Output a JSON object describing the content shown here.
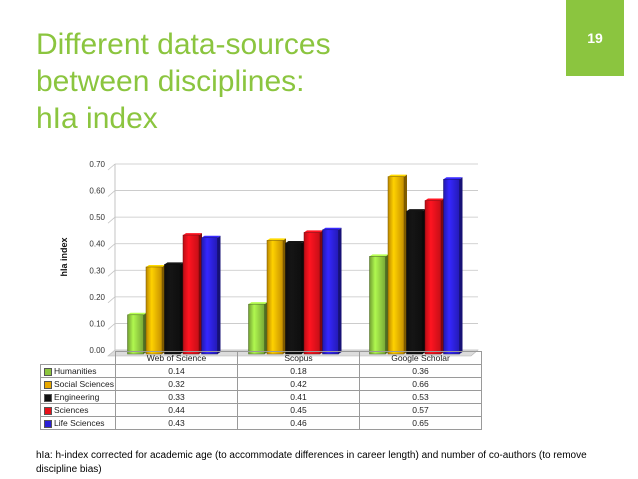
{
  "slide": {
    "title": "Different data-sources\nbetween disciplines:\nhIa index",
    "page_number": "19",
    "footnote": "hIa: h-index corrected for academic age (to accommodate differences in career length) and number of co-authors (to remove discipline bias)",
    "accent_color": "#8bc53f"
  },
  "chart_data": {
    "type": "bar",
    "ylabel": "hIa index",
    "xlabel": "",
    "ylim": [
      0,
      0.7
    ],
    "yticks": [
      "0.00",
      "0.10",
      "0.20",
      "0.30",
      "0.40",
      "0.50",
      "0.60",
      "0.70"
    ],
    "grid": true,
    "legend": "data-table-below",
    "categories": [
      "Web of Science",
      "Scopus",
      "Google Scholar"
    ],
    "series": [
      {
        "name": "Humanities",
        "values": [
          0.14,
          0.18,
          0.36
        ],
        "color": "#8dc63f"
      },
      {
        "name": "Social Sciences",
        "values": [
          0.32,
          0.42,
          0.66
        ],
        "color": "#e8a800"
      },
      {
        "name": "Engineering",
        "values": [
          0.33,
          0.41,
          0.53
        ],
        "color": "#111111"
      },
      {
        "name": "Sciences",
        "values": [
          0.44,
          0.45,
          0.57
        ],
        "color": "#e8101a"
      },
      {
        "name": "Life Sciences",
        "values": [
          0.43,
          0.46,
          0.65
        ],
        "color": "#2a1fd6"
      }
    ],
    "table_values": [
      [
        "0.14",
        "0.18",
        "0.36"
      ],
      [
        "0.32",
        "0.42",
        "0.66"
      ],
      [
        "0.33",
        "0.41",
        "0.53"
      ],
      [
        "0.44",
        "0.45",
        "0.57"
      ],
      [
        "0.43",
        "0.46",
        "0.65"
      ]
    ]
  }
}
